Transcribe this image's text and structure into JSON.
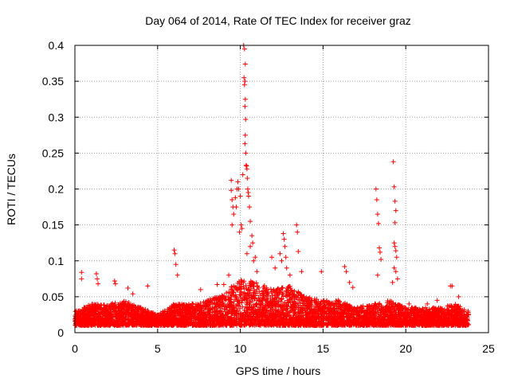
{
  "chart_data": {
    "type": "scatter",
    "title": "Day 064 of 2014, Rate Of TEC Index for receiver graz",
    "xlabel": "GPS time / hours",
    "ylabel": "ROTI / TECUs",
    "xlim": [
      0,
      25
    ],
    "ylim": [
      0,
      0.4
    ],
    "x_ticks": [
      0,
      5,
      10,
      15,
      20,
      25
    ],
    "x_tick_labels": [
      "0",
      "5",
      "10",
      "15",
      "20",
      "25"
    ],
    "y_ticks": [
      0,
      0.05,
      0.1,
      0.15,
      0.2,
      0.25,
      0.3,
      0.35,
      0.4
    ],
    "y_tick_labels": [
      "0",
      "0.05",
      "0.1",
      "0.15",
      "0.2",
      "0.25",
      "0.3",
      "0.35",
      "0.4"
    ],
    "grid": true,
    "marker": "+",
    "marker_color": "#ff0000",
    "series": [
      {
        "name": "ROTI",
        "points": [
          [
            0.4,
            0.084
          ],
          [
            0.4,
            0.075
          ],
          [
            1.3,
            0.082
          ],
          [
            1.35,
            0.075
          ],
          [
            1.4,
            0.068
          ],
          [
            2.4,
            0.072
          ],
          [
            2.45,
            0.068
          ],
          [
            3.2,
            0.062
          ],
          [
            3.5,
            0.054
          ],
          [
            4.4,
            0.065
          ],
          [
            6.0,
            0.115
          ],
          [
            6.05,
            0.11
          ],
          [
            6.1,
            0.095
          ],
          [
            6.2,
            0.08
          ],
          [
            7.6,
            0.06
          ],
          [
            8.6,
            0.067
          ],
          [
            9.0,
            0.067
          ],
          [
            9.3,
            0.08
          ],
          [
            9.45,
            0.212
          ],
          [
            9.45,
            0.198
          ],
          [
            9.5,
            0.185
          ],
          [
            9.5,
            0.15
          ],
          [
            9.55,
            0.175
          ],
          [
            9.6,
            0.165
          ],
          [
            9.7,
            0.188
          ],
          [
            9.75,
            0.175
          ],
          [
            9.8,
            0.2
          ],
          [
            9.85,
            0.21
          ],
          [
            9.9,
            0.2
          ],
          [
            9.95,
            0.14
          ],
          [
            10.0,
            0.19
          ],
          [
            10.05,
            0.15
          ],
          [
            10.1,
            0.145
          ],
          [
            10.15,
            0.22
          ],
          [
            10.2,
            0.4
          ],
          [
            10.25,
            0.395
          ],
          [
            10.3,
            0.374
          ],
          [
            10.22,
            0.355
          ],
          [
            10.28,
            0.35
          ],
          [
            10.25,
            0.345
          ],
          [
            10.3,
            0.325
          ],
          [
            10.28,
            0.315
          ],
          [
            10.32,
            0.297
          ],
          [
            10.3,
            0.275
          ],
          [
            10.28,
            0.263
          ],
          [
            10.33,
            0.25
          ],
          [
            10.35,
            0.233
          ],
          [
            10.38,
            0.232
          ],
          [
            10.4,
            0.228
          ],
          [
            10.42,
            0.215
          ],
          [
            10.45,
            0.2
          ],
          [
            10.48,
            0.195
          ],
          [
            10.5,
            0.19
          ],
          [
            10.55,
            0.175
          ],
          [
            10.6,
            0.155
          ],
          [
            10.7,
            0.135
          ],
          [
            10.75,
            0.125
          ],
          [
            10.8,
            0.1
          ],
          [
            10.9,
            0.105
          ],
          [
            11.0,
            0.085
          ],
          [
            10.6,
            0.12
          ],
          [
            10.4,
            0.11
          ],
          [
            11.9,
            0.105
          ],
          [
            12.1,
            0.09
          ],
          [
            12.4,
            0.11
          ],
          [
            12.5,
            0.1
          ],
          [
            12.6,
            0.138
          ],
          [
            12.65,
            0.13
          ],
          [
            12.7,
            0.12
          ],
          [
            12.75,
            0.105
          ],
          [
            12.8,
            0.09
          ],
          [
            13.0,
            0.08
          ],
          [
            13.4,
            0.15
          ],
          [
            13.45,
            0.14
          ],
          [
            13.5,
            0.113
          ],
          [
            13.7,
            0.085
          ],
          [
            14.9,
            0.085
          ],
          [
            16.3,
            0.092
          ],
          [
            16.4,
            0.085
          ],
          [
            16.6,
            0.07
          ],
          [
            16.8,
            0.063
          ],
          [
            18.2,
            0.2
          ],
          [
            18.25,
            0.185
          ],
          [
            18.3,
            0.165
          ],
          [
            18.35,
            0.152
          ],
          [
            18.4,
            0.118
          ],
          [
            18.45,
            0.112
          ],
          [
            18.5,
            0.102
          ],
          [
            18.3,
            0.08
          ],
          [
            19.25,
            0.238
          ],
          [
            19.3,
            0.203
          ],
          [
            19.35,
            0.183
          ],
          [
            19.4,
            0.17
          ],
          [
            19.35,
            0.153
          ],
          [
            19.3,
            0.125
          ],
          [
            19.35,
            0.12
          ],
          [
            19.4,
            0.114
          ],
          [
            19.45,
            0.105
          ],
          [
            19.3,
            0.09
          ],
          [
            19.4,
            0.085
          ],
          [
            19.5,
            0.075
          ],
          [
            19.2,
            0.07
          ],
          [
            20.2,
            0.04
          ],
          [
            21.3,
            0.04
          ],
          [
            21.9,
            0.045
          ],
          [
            22.7,
            0.065
          ],
          [
            22.8,
            0.065
          ],
          [
            23.2,
            0.05
          ]
        ],
        "dense_band": {
          "x_range": [
            0,
            23.8
          ],
          "y_floor": 0.01,
          "y_upper_by_hour": [
            [
              0,
              0.03
            ],
            [
              1,
              0.04
            ],
            [
              2,
              0.04
            ],
            [
              3,
              0.045
            ],
            [
              4,
              0.035
            ],
            [
              5,
              0.025
            ],
            [
              6,
              0.04
            ],
            [
              7,
              0.04
            ],
            [
              8,
              0.045
            ],
            [
              9,
              0.055
            ],
            [
              10,
              0.075
            ],
            [
              11,
              0.07
            ],
            [
              12,
              0.06
            ],
            [
              13,
              0.065
            ],
            [
              14,
              0.05
            ],
            [
              15,
              0.045
            ],
            [
              16,
              0.045
            ],
            [
              17,
              0.035
            ],
            [
              18,
              0.04
            ],
            [
              19,
              0.045
            ],
            [
              20,
              0.035
            ],
            [
              21,
              0.035
            ],
            [
              22,
              0.035
            ],
            [
              23,
              0.04
            ],
            [
              23.8,
              0.03
            ]
          ]
        }
      }
    ]
  }
}
